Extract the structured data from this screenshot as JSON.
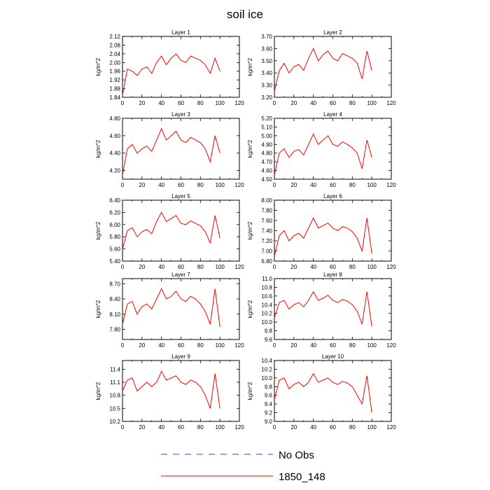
{
  "title": "soil ice",
  "legend": [
    {
      "label": "No Obs",
      "color": "#3b3bd6",
      "style": "dashed"
    },
    {
      "label": "1850_148",
      "color": "#ff0000",
      "style": "solid"
    }
  ],
  "chart_data": [
    {
      "type": "line",
      "title": "Layer 1",
      "ylabel": "kg/m^2",
      "xlim": [
        0,
        120
      ],
      "xticks": [
        0,
        20,
        40,
        60,
        80,
        100,
        120
      ],
      "ylim": [
        1.84,
        2.12
      ],
      "yticks": [
        "1.84",
        "1.88",
        "1.92",
        "1.96",
        "2.00",
        "2.04",
        "2.08",
        "2.12"
      ],
      "color": "#ff0000",
      "x_start": 0,
      "x_step": 5,
      "values": [
        1.85,
        1.97,
        1.96,
        1.94,
        1.97,
        1.98,
        1.95,
        2.0,
        2.03,
        1.99,
        2.02,
        2.04,
        2.01,
        2.0,
        2.03,
        2.02,
        2.01,
        1.99,
        1.95,
        2.02,
        1.96
      ]
    },
    {
      "type": "line",
      "title": "Layer 2",
      "ylabel": "kg/m^2",
      "xlim": [
        0,
        120
      ],
      "xticks": [
        0,
        20,
        40,
        60,
        80,
        100,
        120
      ],
      "ylim": [
        3.2,
        3.7
      ],
      "yticks": [
        "3.20",
        "3.30",
        "3.40",
        "3.50",
        "3.60",
        "3.70"
      ],
      "color": "#ff0000",
      "x_start": 0,
      "x_step": 5,
      "values": [
        3.25,
        3.42,
        3.48,
        3.4,
        3.45,
        3.47,
        3.42,
        3.52,
        3.6,
        3.5,
        3.55,
        3.58,
        3.52,
        3.5,
        3.56,
        3.54,
        3.52,
        3.48,
        3.35,
        3.58,
        3.42
      ]
    },
    {
      "type": "line",
      "title": "Layer 3",
      "ylabel": "kg/m^2",
      "xlim": [
        0,
        120
      ],
      "xticks": [
        0,
        20,
        40,
        60,
        80,
        100,
        120
      ],
      "ylim": [
        4.1,
        4.8
      ],
      "yticks": [
        "4.20",
        "4.40",
        "4.60",
        "4.80"
      ],
      "color": "#ff0000",
      "x_start": 0,
      "x_step": 5,
      "values": [
        4.15,
        4.45,
        4.5,
        4.4,
        4.45,
        4.48,
        4.42,
        4.55,
        4.68,
        4.55,
        4.6,
        4.65,
        4.55,
        4.52,
        4.58,
        4.55,
        4.52,
        4.45,
        4.3,
        4.6,
        4.4
      ]
    },
    {
      "type": "line",
      "title": "Layer 4",
      "ylabel": "kg/m^2",
      "xlim": [
        0,
        120
      ],
      "xticks": [
        0,
        20,
        40,
        60,
        80,
        100,
        120
      ],
      "ylim": [
        4.5,
        5.2
      ],
      "yticks": [
        "4.50",
        "4.60",
        "4.70",
        "4.80",
        "4.90",
        "5.00",
        "5.10",
        "5.20"
      ],
      "color": "#ff0000",
      "x_start": 0,
      "x_step": 5,
      "values": [
        4.55,
        4.8,
        4.85,
        4.75,
        4.82,
        4.84,
        4.78,
        4.9,
        5.02,
        4.9,
        4.95,
        5.0,
        4.9,
        4.88,
        4.93,
        4.9,
        4.86,
        4.8,
        4.62,
        4.95,
        4.75
      ]
    },
    {
      "type": "line",
      "title": "Layer 5",
      "ylabel": "kg/m^2",
      "xlim": [
        0,
        120
      ],
      "xticks": [
        0,
        20,
        40,
        60,
        80,
        100,
        120
      ],
      "ylim": [
        5.4,
        6.4
      ],
      "yticks": [
        "5.40",
        "5.60",
        "5.80",
        "6.00",
        "6.20",
        "6.40"
      ],
      "color": "#ff0000",
      "x_start": 0,
      "x_step": 5,
      "values": [
        5.6,
        5.9,
        5.95,
        5.8,
        5.88,
        5.92,
        5.85,
        6.05,
        6.2,
        6.05,
        6.1,
        6.15,
        6.02,
        6.0,
        6.06,
        6.02,
        5.98,
        5.88,
        5.7,
        6.15,
        5.78
      ]
    },
    {
      "type": "line",
      "title": "Layer 6",
      "ylabel": "kg/m^2",
      "xlim": [
        0,
        120
      ],
      "xticks": [
        0,
        20,
        40,
        60,
        80,
        100,
        120
      ],
      "ylim": [
        6.8,
        8.0
      ],
      "yticks": [
        "6.80",
        "7.00",
        "7.20",
        "7.40",
        "7.60",
        "7.80",
        "8.00"
      ],
      "color": "#ff0000",
      "x_start": 0,
      "x_step": 5,
      "values": [
        6.9,
        7.3,
        7.4,
        7.2,
        7.3,
        7.35,
        7.25,
        7.45,
        7.65,
        7.45,
        7.5,
        7.55,
        7.45,
        7.4,
        7.48,
        7.45,
        7.38,
        7.25,
        7.0,
        7.65,
        6.95
      ]
    },
    {
      "type": "line",
      "title": "Layer 7",
      "ylabel": "kg/m^2",
      "xlim": [
        0,
        120
      ],
      "xticks": [
        0,
        20,
        40,
        60,
        80,
        100,
        120
      ],
      "ylim": [
        7.6,
        8.8
      ],
      "yticks": [
        "7.80",
        "8.10",
        "8.40",
        "8.70"
      ],
      "color": "#ff0000",
      "x_start": 0,
      "x_step": 5,
      "values": [
        7.9,
        8.3,
        8.35,
        8.1,
        8.25,
        8.3,
        8.2,
        8.4,
        8.6,
        8.4,
        8.45,
        8.55,
        8.4,
        8.35,
        8.45,
        8.4,
        8.3,
        8.15,
        7.9,
        8.6,
        7.85
      ]
    },
    {
      "type": "line",
      "title": "Layer 8",
      "ylabel": "kg/m^2",
      "xlim": [
        0,
        120
      ],
      "xticks": [
        0,
        20,
        40,
        60,
        80,
        100,
        120
      ],
      "ylim": [
        9.6,
        11.0
      ],
      "yticks": [
        "9.6",
        "9.8",
        "10.0",
        "10.2",
        "10.4",
        "10.6",
        "10.8",
        "11.0"
      ],
      "color": "#ff0000",
      "x_start": 0,
      "x_step": 5,
      "values": [
        10.1,
        10.45,
        10.5,
        10.3,
        10.4,
        10.45,
        10.35,
        10.5,
        10.7,
        10.5,
        10.55,
        10.62,
        10.5,
        10.45,
        10.52,
        10.48,
        10.4,
        10.25,
        9.95,
        10.7,
        9.9
      ]
    },
    {
      "type": "line",
      "title": "Layer 9",
      "ylabel": "kg/m^2",
      "xlim": [
        0,
        120
      ],
      "xticks": [
        0,
        20,
        40,
        60,
        80,
        100,
        120
      ],
      "ylim": [
        10.2,
        11.6
      ],
      "yticks": [
        "10.2",
        "10.5",
        "10.8",
        "11.1",
        "11.4"
      ],
      "color": "#ff0000",
      "x_start": 0,
      "x_step": 5,
      "values": [
        10.9,
        11.15,
        11.2,
        10.9,
        11.0,
        11.1,
        11.0,
        11.1,
        11.35,
        11.15,
        11.2,
        11.25,
        11.1,
        11.05,
        11.15,
        11.1,
        11.0,
        10.8,
        10.5,
        11.3,
        10.5
      ]
    },
    {
      "type": "line",
      "title": "Layer 10",
      "ylabel": "kg/m^2",
      "xlim": [
        0,
        120
      ],
      "xticks": [
        0,
        20,
        40,
        60,
        80,
        100,
        120
      ],
      "ylim": [
        9.0,
        10.4
      ],
      "yticks": [
        "9.0",
        "9.2",
        "9.4",
        "9.6",
        "9.8",
        "10.0",
        "10.2",
        "10.4"
      ],
      "color": "#ff0000",
      "x_start": 0,
      "x_step": 5,
      "values": [
        9.5,
        9.95,
        10.0,
        9.75,
        9.85,
        9.9,
        9.8,
        9.9,
        10.1,
        9.9,
        9.95,
        10.0,
        9.9,
        9.85,
        9.92,
        9.88,
        9.8,
        9.6,
        9.4,
        10.05,
        9.2
      ]
    }
  ]
}
